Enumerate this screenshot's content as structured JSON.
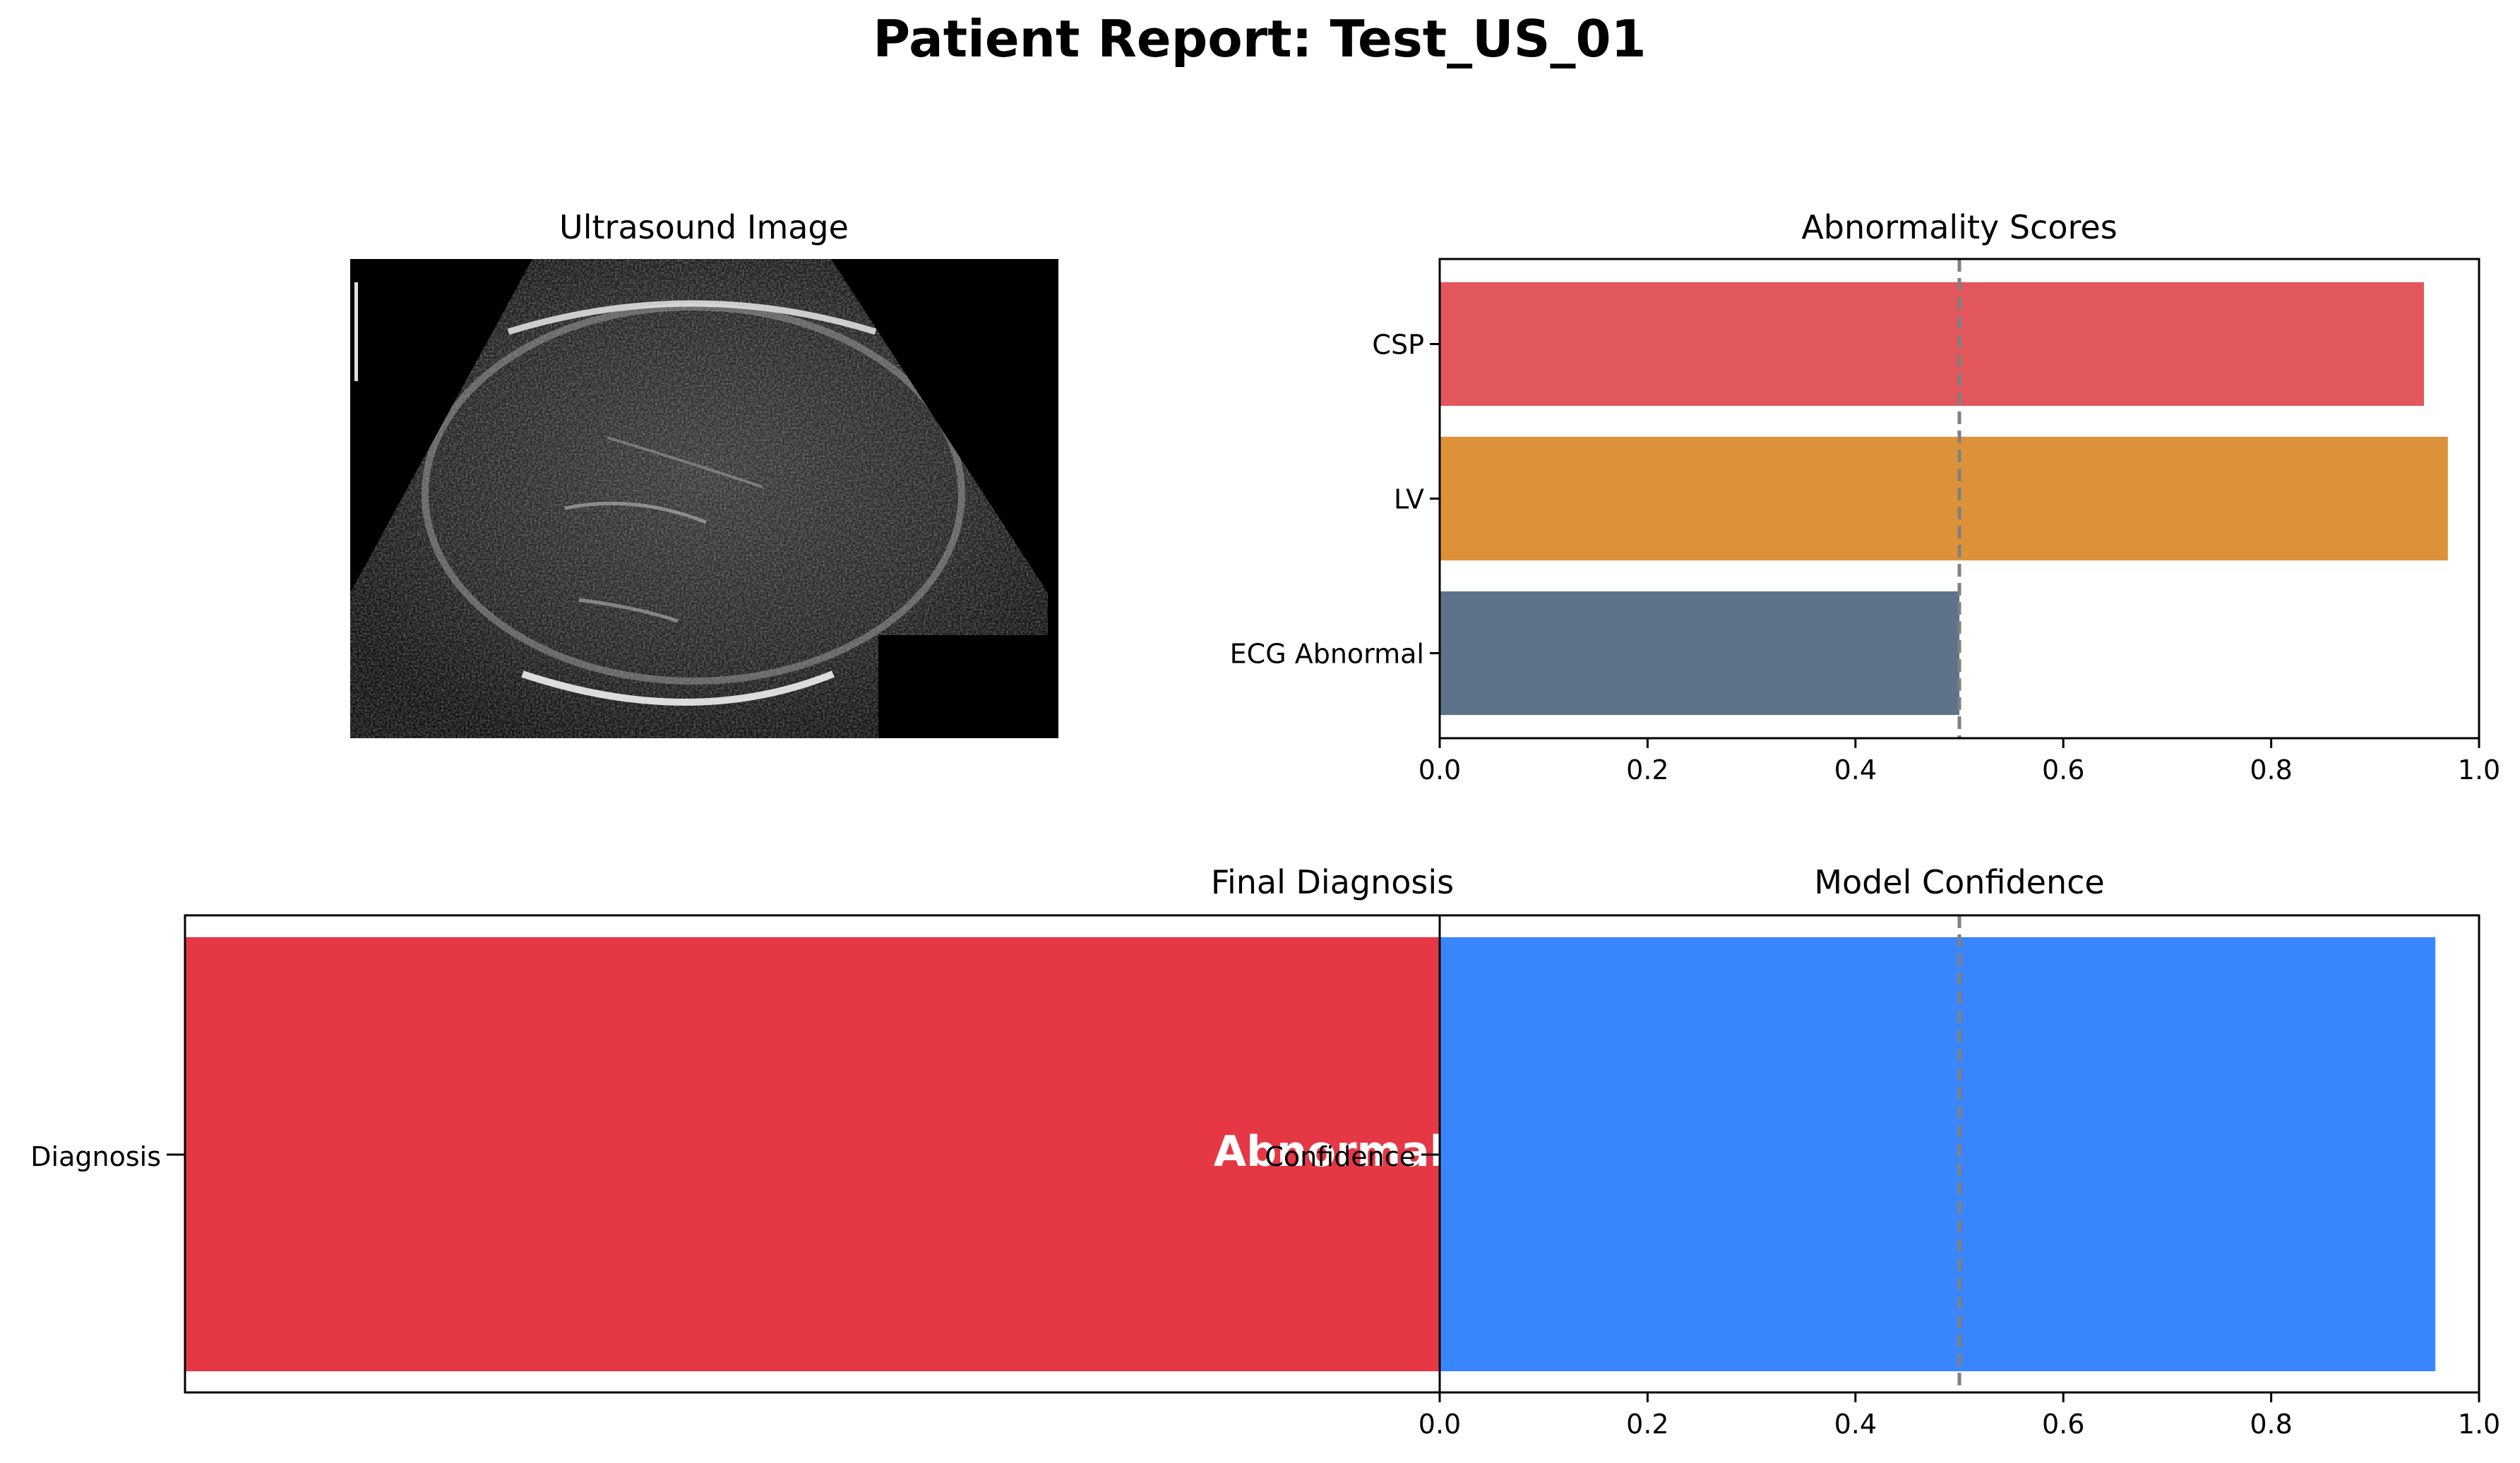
{
  "figure": {
    "title": "Patient Report: Test_US_01"
  },
  "ultrasound": {
    "title": "Ultrasound Image"
  },
  "colors": {
    "csp": "#e1575b",
    "lv": "#dd923a",
    "ecg": "#5e7389",
    "diagnosis": "#e63745",
    "confidence": "#3a86ff",
    "threshold": "#808080"
  },
  "chart_data": [
    {
      "type": "bar",
      "orientation": "horizontal",
      "title": "Abnormality Scores",
      "categories": [
        "CSP",
        "LV",
        "ECG Abnormal"
      ],
      "values": [
        0.947,
        0.97,
        0.5
      ],
      "xlim": [
        0,
        1
      ],
      "xticks": [
        "0.0",
        "0.2",
        "0.4",
        "0.6",
        "0.8",
        "1.0"
      ],
      "threshold": 0.5
    },
    {
      "type": "bar",
      "orientation": "horizontal",
      "title": "Final Diagnosis",
      "categories": [
        "Diagnosis"
      ],
      "label": "Abnormal"
    },
    {
      "type": "bar",
      "orientation": "horizontal",
      "title": "Model Confidence",
      "categories": [
        "Confidence"
      ],
      "values": [
        0.958
      ],
      "xlim": [
        0,
        1
      ],
      "xticks": [
        "0.0",
        "0.2",
        "0.4",
        "0.6",
        "0.8",
        "1.0"
      ],
      "threshold": 0.5
    }
  ]
}
